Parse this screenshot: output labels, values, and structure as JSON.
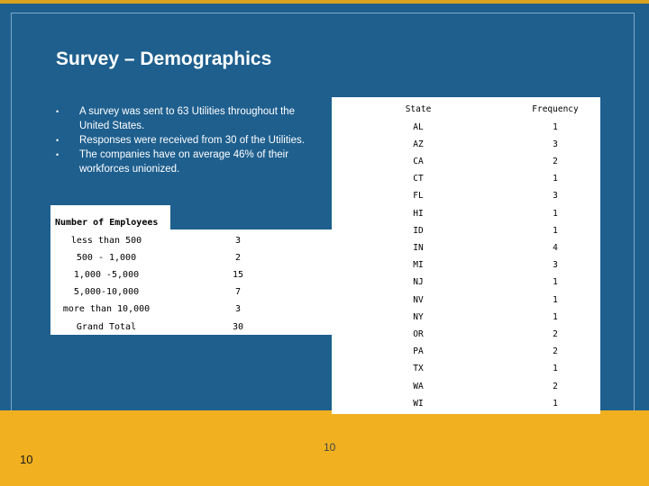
{
  "title": "Survey – Demographics",
  "bullets": [
    "A survey was sent to 63 Utilities throughout the United States.",
    "Responses were received from 30 of the Utilities.",
    "The companies have on average 46% of their workforces unionized."
  ],
  "employees": {
    "title": "Number of Employees",
    "rows": [
      {
        "label": "less than 500",
        "value": "3"
      },
      {
        "label": "500 - 1,000",
        "value": "2"
      },
      {
        "label": "1,000 -5,000",
        "value": "15"
      },
      {
        "label": "5,000-10,000",
        "value": "7"
      },
      {
        "label": "more than 10,000",
        "value": "3"
      },
      {
        "label": "Grand Total",
        "value": "30"
      }
    ]
  },
  "states": {
    "headers": {
      "state": "State",
      "frequency": "Frequency"
    },
    "rows": [
      {
        "state": "AL",
        "freq": "1"
      },
      {
        "state": "AZ",
        "freq": "3"
      },
      {
        "state": "CA",
        "freq": "2"
      },
      {
        "state": "CT",
        "freq": "1"
      },
      {
        "state": "FL",
        "freq": "3"
      },
      {
        "state": "HI",
        "freq": "1"
      },
      {
        "state": "ID",
        "freq": "1"
      },
      {
        "state": "IN",
        "freq": "4"
      },
      {
        "state": "MI",
        "freq": "3"
      },
      {
        "state": "NJ",
        "freq": "1"
      },
      {
        "state": "NV",
        "freq": "1"
      },
      {
        "state": "NY",
        "freq": "1"
      },
      {
        "state": "OR",
        "freq": "2"
      },
      {
        "state": "PA",
        "freq": "2"
      },
      {
        "state": "TX",
        "freq": "1"
      },
      {
        "state": "WA",
        "freq": "2"
      },
      {
        "state": "WI",
        "freq": "1"
      }
    ]
  },
  "page_number_left": "10",
  "page_number_center": "10",
  "colors": {
    "background": "#1e5f8e",
    "footer": "#f0b020",
    "accent": "#d9a31f"
  }
}
